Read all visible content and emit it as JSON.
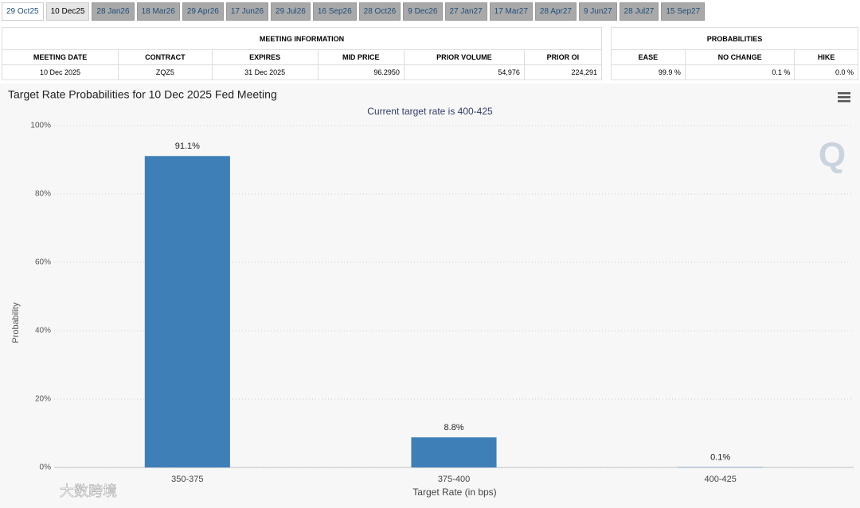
{
  "tabs": [
    "29 Oct25",
    "10 Dec25",
    "28 Jan26",
    "18 Mar26",
    "29 Apr26",
    "17 Jun26",
    "29 Jul26",
    "16 Sep26",
    "28 Oct26",
    "9 Dec26",
    "27 Jan27",
    "17 Mar27",
    "28 Apr27",
    "9 Jun27",
    "28 Jul27",
    "15 Sep27"
  ],
  "meeting_table": {
    "title": "MEETING INFORMATION",
    "headers": [
      "MEETING DATE",
      "CONTRACT",
      "EXPIRES",
      "MID PRICE",
      "PRIOR VOLUME",
      "PRIOR OI"
    ],
    "rows": [
      [
        "10 Dec 2025",
        "ZQZ5",
        "31 Dec 2025",
        "96.2950",
        "54,976",
        "224,291"
      ]
    ]
  },
  "probabilities_table": {
    "title": "PROBABILITIES",
    "headers": [
      "EASE",
      "NO CHANGE",
      "HIKE"
    ],
    "rows": [
      [
        "99.9 %",
        "0.1 %",
        "0.0 %"
      ]
    ]
  },
  "chart_data": {
    "type": "bar",
    "title": "Target Rate Probabilities for 10 Dec 2025 Fed Meeting",
    "subtitle": "Current target rate is 400-425",
    "x_label": "Target Rate (in bps)",
    "y_label": "Probability",
    "categories": [
      "350-375",
      "375-400",
      "400-425"
    ],
    "values": [
      91.1,
      8.8,
      0.1
    ],
    "value_labels": [
      "91.1%",
      "8.8%",
      "0.1%"
    ],
    "color": "#3f7fb8",
    "ylim": [
      0,
      100
    ],
    "yticks": [
      {
        "value": 0,
        "label": "0%"
      },
      {
        "value": 20,
        "label": "20%"
      },
      {
        "value": 40,
        "label": "40%"
      },
      {
        "value": 60,
        "label": "60%"
      },
      {
        "value": 80,
        "label": "80%"
      },
      {
        "value": 100,
        "label": "100%"
      }
    ],
    "grid": true
  },
  "logo": "Q",
  "watermark": "大数跨境"
}
